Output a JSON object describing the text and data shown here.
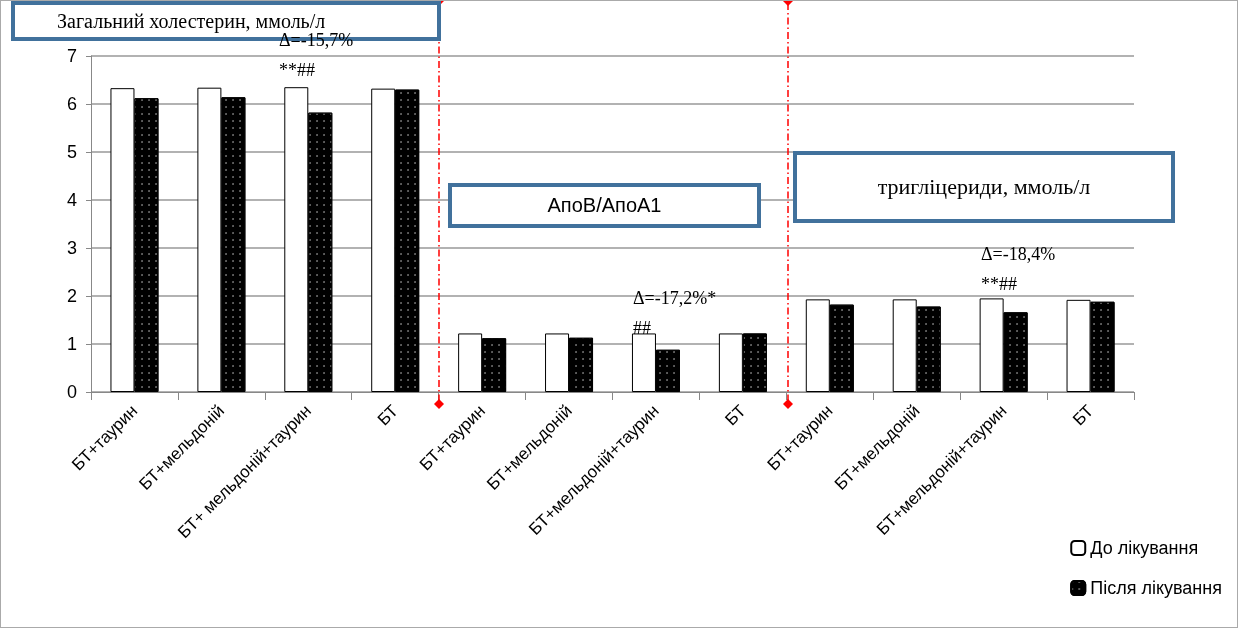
{
  "chart_data": {
    "type": "bar",
    "categories": [
      "БТ+таурин",
      "БТ+мельдоній",
      "БТ+ мельдоній+таурин",
      "БТ",
      "БТ+таурин",
      "БТ+мельдоній",
      "БТ+мельдоній+таурин",
      "БТ",
      "БТ+таурин",
      "БТ+мельдоній",
      "БТ+мельдоній+таурин",
      "БТ"
    ],
    "series": [
      {
        "name": "До лікування",
        "color": "#ffffff",
        "values": [
          6.33,
          6.34,
          6.35,
          6.32,
          1.22,
          1.22,
          1.22,
          1.22,
          1.93,
          1.93,
          1.95,
          1.92
        ]
      },
      {
        "name": "Після лікування",
        "color": "#000000",
        "values": [
          6.12,
          6.14,
          5.82,
          6.3,
          1.12,
          1.13,
          0.88,
          1.22,
          1.82,
          1.78,
          1.66,
          1.88
        ]
      }
    ],
    "ylim": [
      0,
      7
    ],
    "yticks": [
      0,
      1,
      2,
      3,
      4,
      5,
      6,
      7
    ],
    "grid": "y",
    "legend": "bottom right",
    "annotations": [
      "Загальний холестерин, ммоль/л",
      "АпоВ/АпоА1",
      "тригліцериди, ммоль/л",
      "Δ=-15,7%\n**##",
      "Δ=-17,2%*\n##",
      "Δ=-18,4%\n**##"
    ]
  }
}
